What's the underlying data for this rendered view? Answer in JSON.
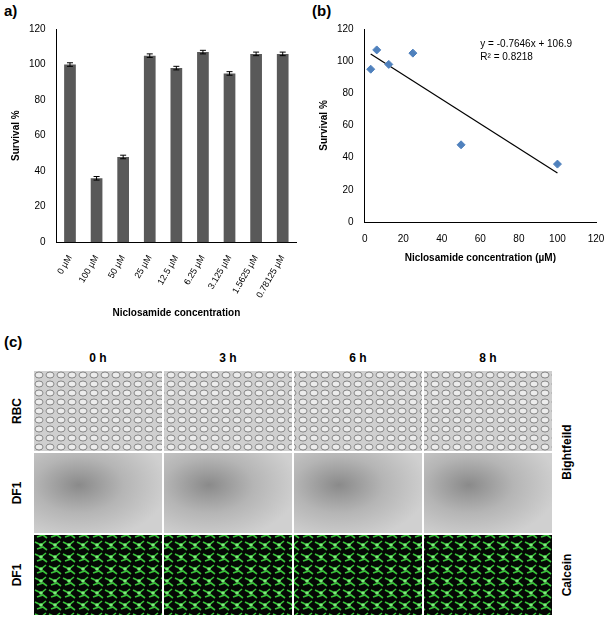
{
  "chart_data": [
    {
      "type": "bar",
      "panel_label": "a)",
      "categories": [
        "0 µM",
        "100 µM",
        "50 µM",
        "25 µM",
        "12.5 µM",
        "6.25 µM",
        "3.125 µM",
        "1.5625 µM",
        "0.78125 µM"
      ],
      "values": [
        100,
        36,
        48,
        105,
        98,
        107,
        95,
        106,
        106
      ],
      "errors": [
        1,
        1,
        1,
        1,
        1,
        1,
        1,
        1,
        1
      ],
      "color": "#595959",
      "x_label": "Niclosamide concentration",
      "y_label": "Survival %",
      "ylim": [
        0,
        120
      ],
      "yticks": [
        0,
        20,
        40,
        60,
        80,
        100,
        120
      ],
      "grid": false
    },
    {
      "type": "scatter",
      "panel_label": "(b)",
      "x": [
        3.125,
        6.25,
        12.5,
        25,
        50,
        100
      ],
      "values": [
        95,
        107,
        98,
        105,
        48,
        36
      ],
      "color": "#4f81bd",
      "marker": "diamond",
      "x_label": "Niclosamide concentration (µM)",
      "y_label": "Survival %",
      "xlim": [
        0,
        120
      ],
      "xticks": [
        0,
        20,
        40,
        60,
        80,
        100,
        120
      ],
      "ylim": [
        0,
        120
      ],
      "yticks": [
        0,
        20,
        40,
        60,
        80,
        100,
        120
      ],
      "grid": false,
      "trendline": {
        "slope": -0.7646,
        "intercept": 106.9,
        "x_range": [
          3.125,
          100
        ],
        "color": "#000000"
      },
      "annotations": [
        "y = -0.7646x + 106.9",
        "R² = 0.8218"
      ]
    }
  ],
  "image_panel": {
    "panel_label": "(c)",
    "columns": [
      "0 h",
      "3 h",
      "6 h",
      "8 h"
    ],
    "rows": [
      "RBC",
      "DF1",
      "DF1"
    ],
    "side_labels": [
      "Bightfeild",
      "Calcein"
    ]
  }
}
